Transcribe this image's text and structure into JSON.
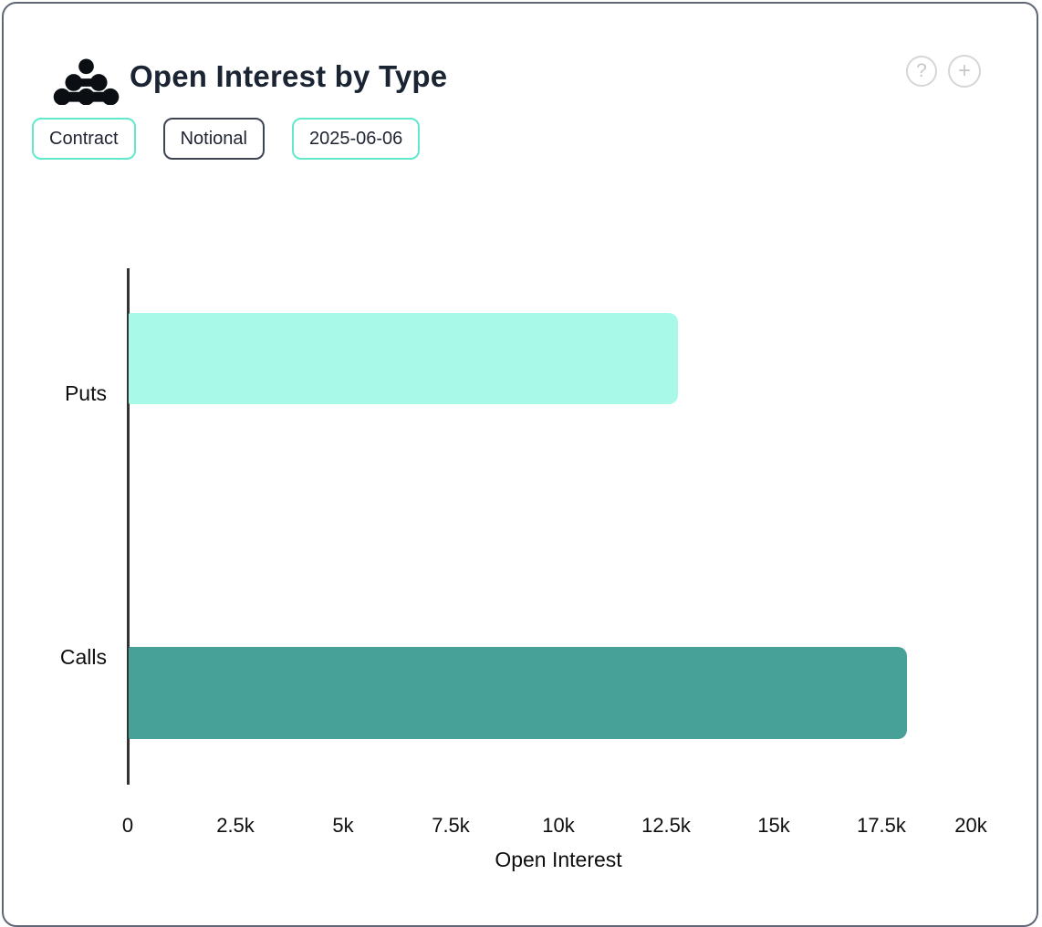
{
  "header": {
    "title": "Open Interest by Type",
    "help_icon_glyph": "?",
    "add_icon_glyph": "+"
  },
  "toolbar": {
    "buttons": [
      {
        "label": "Contract",
        "variant": "teal"
      },
      {
        "label": "Notional",
        "variant": "dark"
      },
      {
        "label": "2025-06-06",
        "variant": "teal"
      }
    ]
  },
  "chart_data": {
    "type": "bar",
    "orientation": "horizontal",
    "title": "Open Interest by Type",
    "categories": [
      "Puts",
      "Calls"
    ],
    "values": [
      12750,
      18080
    ],
    "bar_colors": [
      "#a9f9e9",
      "#48a198"
    ],
    "xlabel": "Open Interest",
    "ylabel": "",
    "xlim": [
      0,
      20000
    ],
    "xticks": [
      0,
      2500,
      5000,
      7500,
      10000,
      12500,
      15000,
      17500,
      20000
    ],
    "xtick_labels": [
      "0",
      "2.5k",
      "5k",
      "7.5k",
      "10k",
      "12.5k",
      "15k",
      "17.5k",
      "20k"
    ],
    "grid": false,
    "legend": false
  },
  "colors": {
    "teal_chip_border": "#62e8cd",
    "dark_chip_border": "#3d4555",
    "card_border": "#5f6776",
    "title_text": "#1b2433",
    "axis_line": "#333333"
  }
}
